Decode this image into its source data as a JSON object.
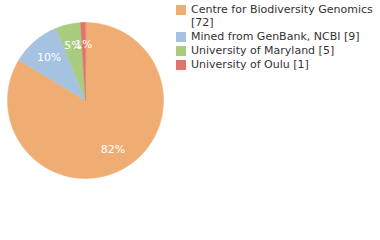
{
  "chart_data": {
    "type": "pie",
    "categories": [
      "Centre for Biodiversity Genomics [72]",
      "Mined from GenBank, NCBI [9]",
      "University of Maryland [5]",
      "University of Oulu [1]"
    ],
    "values": [
      82,
      10,
      5,
      1
    ],
    "value_labels": [
      "82%",
      "10%",
      "5%",
      "1%"
    ],
    "colors": [
      "#f0ad73",
      "#a5c3e1",
      "#a9cc7f",
      "#e0736a"
    ],
    "data_labels": true,
    "legend": "right"
  }
}
